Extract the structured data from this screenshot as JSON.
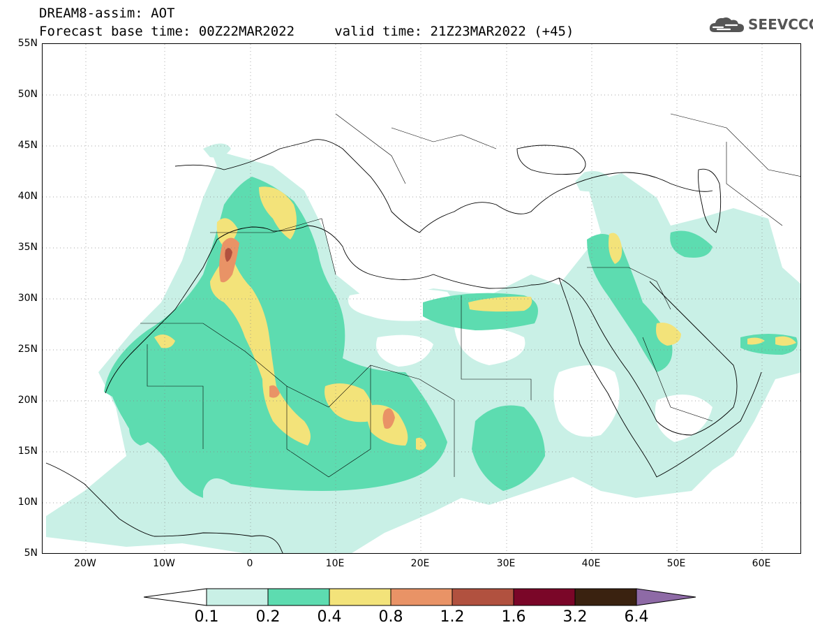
{
  "title": {
    "line1": "DREAM8-assim: AOT",
    "line2": "Forecast base time: 00Z22MAR2022     valid time: 21Z23MAR2022 (+45)"
  },
  "logo": {
    "text": "SEEVCCC",
    "icon": "cloud-icon"
  },
  "axes": {
    "x_ticks": [
      "20W",
      "10W",
      "0",
      "10E",
      "20E",
      "30E",
      "40E",
      "50E",
      "60E"
    ],
    "y_ticks": [
      "55N",
      "50N",
      "45N",
      "40N",
      "35N",
      "30N",
      "25N",
      "20N",
      "15N",
      "10N",
      "5N"
    ]
  },
  "legend": {
    "levels": [
      "0.1",
      "0.2",
      "0.4",
      "0.8",
      "1.2",
      "1.6",
      "3.2",
      "6.4"
    ],
    "colors": [
      "#ffffff",
      "#c9f0e6",
      "#5ddcb0",
      "#f3e37a",
      "#e99366",
      "#b1513f",
      "#7a0628",
      "#3a2210",
      "#8e6aa6"
    ]
  },
  "colors": {
    "c1": "#c9f0e6",
    "c2": "#5ddcb0",
    "c3": "#f3e37a",
    "c4": "#e99366",
    "c5": "#b1513f"
  }
}
